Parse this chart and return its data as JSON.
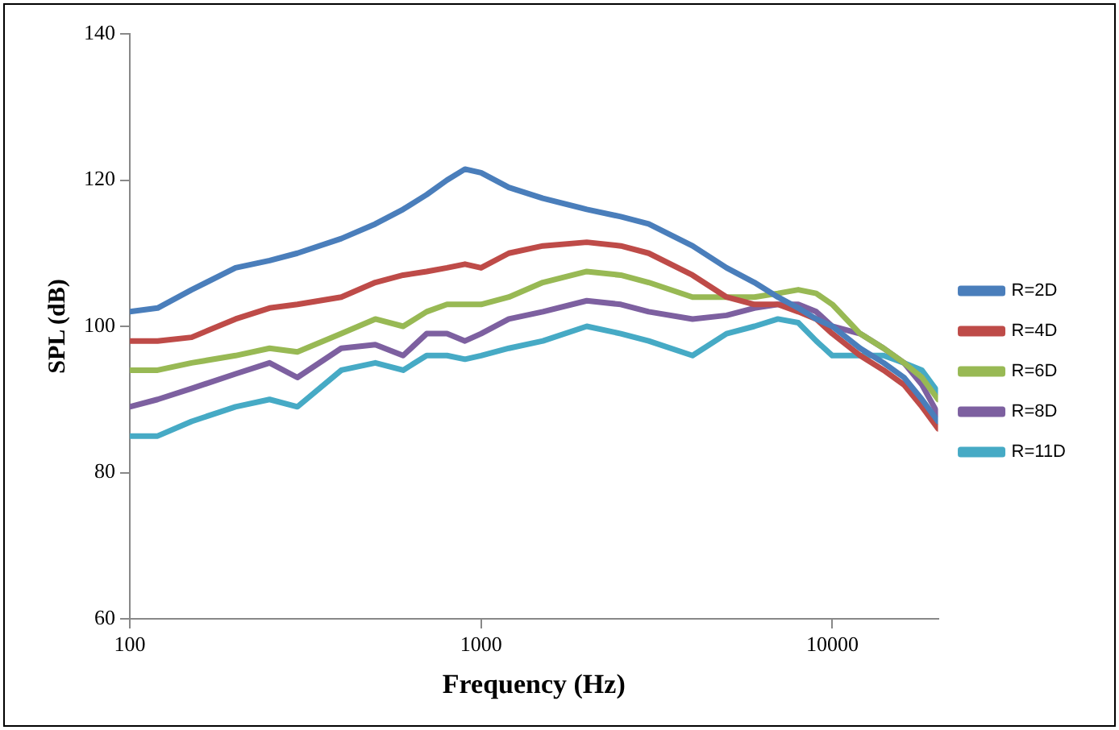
{
  "chart_data": {
    "type": "line",
    "xlabel": "Frequency (Hz)",
    "ylabel": "SPL (dB)",
    "log": "x",
    "x": [
      100,
      120,
      150,
      200,
      250,
      300,
      400,
      500,
      600,
      700,
      800,
      900,
      1000,
      1200,
      1500,
      2000,
      2500,
      3000,
      4000,
      5000,
      6000,
      7000,
      8000,
      9000,
      10000,
      12000,
      14000,
      16000,
      18000,
      20000
    ],
    "xlim": [
      100,
      20000
    ],
    "xticks": [
      100,
      1000,
      10000
    ],
    "ylim": [
      60,
      140
    ],
    "yticks": [
      60,
      80,
      100,
      120,
      140
    ],
    "grid": false,
    "legend": "right",
    "marker": "none",
    "line_style": "solid",
    "series": [
      {
        "name": "R=2D",
        "color": "#4a7ebb",
        "values": [
          102,
          102.5,
          105,
          108,
          109,
          110,
          112,
          114,
          116,
          118,
          120,
          121.5,
          121,
          119,
          117.5,
          116,
          115,
          114,
          111,
          108,
          106,
          104,
          102.5,
          101,
          100,
          97,
          95,
          93,
          90,
          87
        ]
      },
      {
        "name": "R=4D",
        "color": "#be4b48",
        "values": [
          98,
          98,
          98.5,
          101,
          102.5,
          103,
          104,
          106,
          107,
          107.5,
          108,
          108.5,
          108,
          110,
          111,
          111.5,
          111,
          110,
          107,
          104,
          103,
          103,
          102,
          101,
          99,
          96,
          94,
          92,
          89,
          86
        ]
      },
      {
        "name": "R=6D",
        "color": "#98b954",
        "values": [
          94,
          94,
          95,
          96,
          97,
          96.5,
          99,
          101,
          100,
          102,
          103,
          103,
          103,
          104,
          106,
          107.5,
          107,
          106,
          104,
          104,
          104,
          104.5,
          105,
          104.5,
          103,
          99,
          97,
          95,
          93,
          90
        ]
      },
      {
        "name": "R=8D",
        "color": "#7d60a0",
        "values": [
          89,
          90,
          91.5,
          93.5,
          95,
          93,
          97,
          97.5,
          96,
          99,
          99,
          98,
          99,
          101,
          102,
          103.5,
          103,
          102,
          101,
          101.5,
          102.5,
          103,
          103,
          102,
          100,
          99,
          97,
          95,
          92,
          88
        ]
      },
      {
        "name": "R=11D",
        "color": "#46aac5",
        "values": [
          85,
          85,
          87,
          89,
          90,
          89,
          94,
          95,
          94,
          96,
          96,
          95.5,
          96,
          97,
          98,
          100,
          99,
          98,
          96,
          99,
          100,
          101,
          100.5,
          98,
          96,
          96,
          96,
          95,
          94,
          91
        ]
      }
    ]
  }
}
